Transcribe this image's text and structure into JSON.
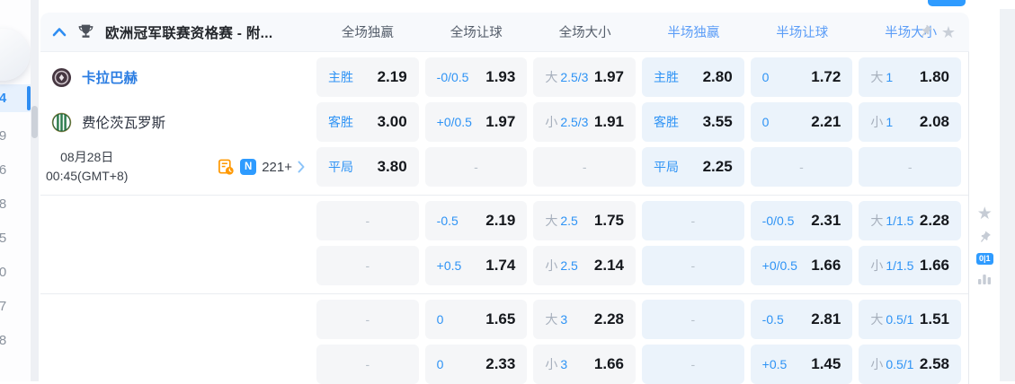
{
  "sidebar": {
    "items": [
      {
        "label": "4",
        "selected": true
      },
      {
        "label": "9",
        "selected": false
      },
      {
        "label": "6",
        "selected": false
      },
      {
        "label": "8",
        "selected": false
      },
      {
        "label": "5",
        "selected": false
      },
      {
        "label": "0",
        "selected": false
      },
      {
        "label": "7",
        "selected": false
      },
      {
        "label": "8",
        "selected": false
      }
    ]
  },
  "header": {
    "league_title": "欧洲冠军联赛资格赛 - 附...",
    "columns": [
      {
        "label": "全场独赢",
        "scope": "full"
      },
      {
        "label": "全场让球",
        "scope": "full"
      },
      {
        "label": "全场大小",
        "scope": "full"
      },
      {
        "label": "半场独赢",
        "scope": "half"
      },
      {
        "label": "半场让球",
        "scope": "half"
      },
      {
        "label": "半场大小",
        "scope": "half"
      }
    ]
  },
  "match": {
    "home_team": "卡拉巴赫",
    "away_team": "费伦茨瓦罗斯",
    "date_line1": "08月28日",
    "date_line2": "00:45(GMT+8)",
    "news_badge": "N",
    "markets_count": "221+"
  },
  "side_tools": {
    "corner_badge": "0|1"
  },
  "colors": {
    "accent_blue": "#2e9bff",
    "label_blue": "#2e93f5",
    "half_header_blue": "#5b9df7",
    "odds_dark": "#15181d",
    "ft_cell_bg": "#f5f6f8",
    "ht_cell_bg": "#ebf3fb",
    "stats_orange": "#ff9800"
  },
  "odds_groups": [
    {
      "rows": [
        [
          {
            "label": "主胜",
            "value": "2.19"
          },
          {
            "label": "-0/0.5",
            "value": "1.93"
          },
          {
            "prefix": "大",
            "label": "2.5/3",
            "value": "1.97"
          },
          {
            "label": "主胜",
            "value": "2.80"
          },
          {
            "label": "0",
            "value": "1.72"
          },
          {
            "prefix": "大",
            "label": "1",
            "value": "1.80"
          }
        ],
        [
          {
            "label": "客胜",
            "value": "3.00"
          },
          {
            "label": "+0/0.5",
            "value": "1.97"
          },
          {
            "prefix": "小",
            "label": "2.5/3",
            "value": "1.91"
          },
          {
            "label": "客胜",
            "value": "3.55"
          },
          {
            "label": "0",
            "value": "2.21"
          },
          {
            "prefix": "小",
            "label": "1",
            "value": "2.08"
          }
        ],
        [
          {
            "label": "平局",
            "value": "3.80"
          },
          {
            "dash": true
          },
          {
            "dash": true
          },
          {
            "label": "平局",
            "value": "2.25"
          },
          {
            "dash": true
          },
          {
            "dash": true
          }
        ]
      ]
    },
    {
      "rows": [
        [
          {
            "dash": true
          },
          {
            "label": "-0.5",
            "value": "2.19"
          },
          {
            "prefix": "大",
            "label": "2.5",
            "value": "1.75"
          },
          {
            "dash": true
          },
          {
            "label": "-0/0.5",
            "value": "2.31"
          },
          {
            "prefix": "大",
            "label": "1/1.5",
            "value": "2.28"
          }
        ],
        [
          {
            "dash": true
          },
          {
            "label": "+0.5",
            "value": "1.74"
          },
          {
            "prefix": "小",
            "label": "2.5",
            "value": "2.14"
          },
          {
            "dash": true
          },
          {
            "label": "+0/0.5",
            "value": "1.66"
          },
          {
            "prefix": "小",
            "label": "1/1.5",
            "value": "1.66"
          }
        ]
      ]
    },
    {
      "rows": [
        [
          {
            "dash": true
          },
          {
            "label": "0",
            "value": "1.65"
          },
          {
            "prefix": "大",
            "label": "3",
            "value": "2.28"
          },
          {
            "dash": true
          },
          {
            "label": "-0.5",
            "value": "2.81"
          },
          {
            "prefix": "大",
            "label": "0.5/1",
            "value": "1.51"
          }
        ],
        [
          {
            "dash": true
          },
          {
            "label": "0",
            "value": "2.33"
          },
          {
            "prefix": "小",
            "label": "3",
            "value": "1.66"
          },
          {
            "dash": true
          },
          {
            "label": "+0.5",
            "value": "1.45"
          },
          {
            "prefix": "小",
            "label": "0.5/1",
            "value": "2.58"
          }
        ]
      ]
    }
  ]
}
